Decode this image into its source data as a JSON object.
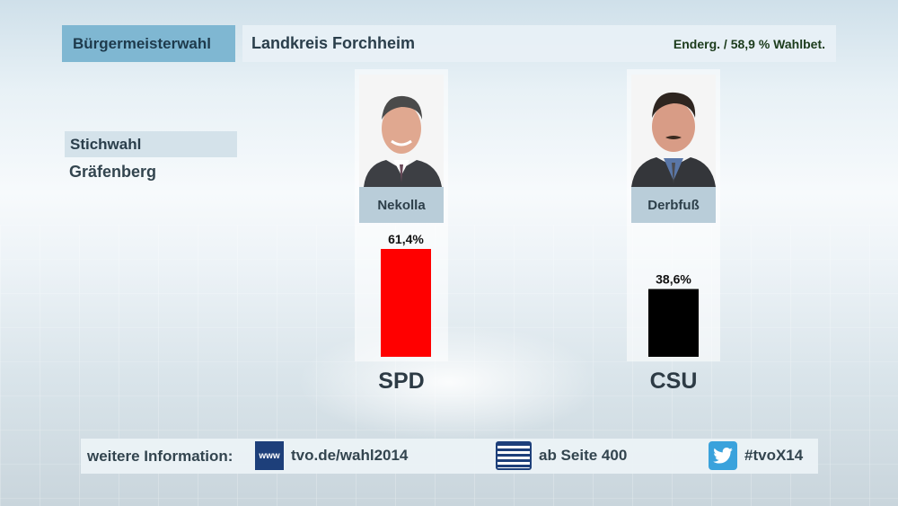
{
  "header": {
    "election_type": "Bürgermeisterwahl",
    "region": "Landkreis Forchheim",
    "status": "Enderg. / 58,9 % Wahlbet."
  },
  "side": {
    "round": "Stichwahl",
    "municipality": "Gräfenberg"
  },
  "candidates": [
    {
      "name": "Nekolla",
      "party": "SPD",
      "value_label": "61,4%",
      "color": "#ff0000"
    },
    {
      "name": "Derbfuß",
      "party": "CSU",
      "value_label": "38,6%",
      "color": "#000000"
    }
  ],
  "chart_data": {
    "type": "bar",
    "categories": [
      "SPD",
      "CSU"
    ],
    "values": [
      61.4,
      38.6
    ],
    "colors": [
      "#ff0000",
      "#000000"
    ],
    "ylim": [
      0,
      61.4
    ]
  },
  "footer": {
    "label": "weitere Information:",
    "web_icon": "www-icon",
    "web_text": "tvo.de/wahl2014",
    "teletext_icon": "teletext-icon",
    "teletext_text": "ab Seite 400",
    "twitter_icon": "twitter-icon",
    "twitter_text": "#tvoX14"
  }
}
